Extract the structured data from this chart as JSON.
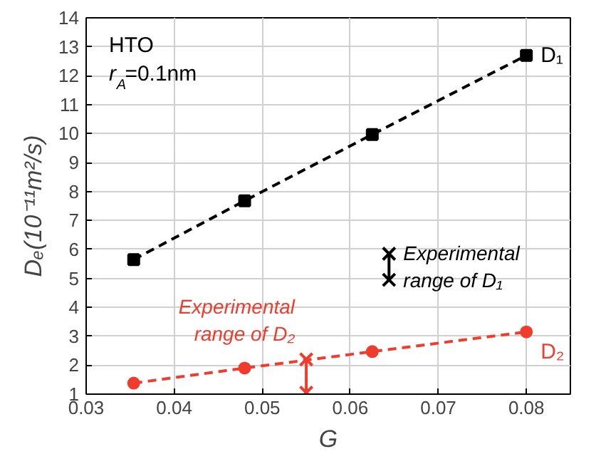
{
  "chart_data": {
    "type": "line",
    "xlabel": "G",
    "ylabel": "Dₑ(10⁻¹¹m²/s)",
    "xlim": [
      0.03,
      0.085
    ],
    "xticks": [
      0.03,
      0.04,
      0.05,
      0.06,
      0.07,
      0.08
    ],
    "ylim": [
      1,
      14
    ],
    "yticks": [
      1,
      2,
      3,
      4,
      5,
      6,
      7,
      8,
      9,
      10,
      11,
      12,
      13,
      14
    ],
    "grid": true,
    "series": [
      {
        "name": "D₁",
        "color": "#000000",
        "marker": "square",
        "line_style": "dashed",
        "x": [
          0.0354,
          0.048,
          0.0625,
          0.08
        ],
        "values": [
          5.65,
          7.68,
          9.97,
          12.7
        ]
      },
      {
        "name": "D₂",
        "color": "#f03c2c",
        "marker": "circle",
        "line_style": "dashed",
        "x": [
          0.0354,
          0.048,
          0.0625,
          0.08
        ],
        "values": [
          1.38,
          1.9,
          2.47,
          3.15
        ]
      },
      {
        "color": "#000000",
        "marker": "cross",
        "line_style": "solid",
        "x": [
          0.0644,
          0.0644
        ],
        "values": [
          5.85,
          4.95
        ]
      },
      {
        "color": "#f03c2c",
        "marker": "cross",
        "line_style": "solid",
        "x": [
          0.055,
          0.055
        ],
        "values": [
          2.2,
          1.05
        ]
      }
    ],
    "annotations": [
      "HTO\nr$_{A}$=0.1nm",
      {
        "text": "Experimental\nrange of D₁",
        "x": 0.0644,
        "y": 5.4
      },
      {
        "text": "Experimental\nrange of D₂",
        "x": 0.055,
        "y": 2.2
      }
    ]
  }
}
